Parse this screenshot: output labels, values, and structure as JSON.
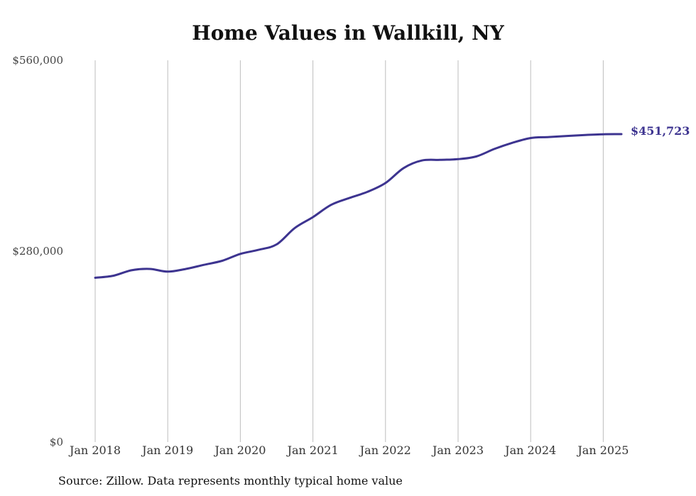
{
  "chart_data": {
    "type": "line",
    "title": "Home Values in Wallkill, NY",
    "xlabel": "",
    "ylabel": "",
    "ylim": [
      0,
      560000
    ],
    "y_ticks": [
      {
        "value": 0,
        "label": "$0"
      },
      {
        "value": 280000,
        "label": "$280,000"
      },
      {
        "value": 560000,
        "label": "$560,000"
      }
    ],
    "x_ticks": [
      {
        "value": 2018,
        "label": "Jan 2018"
      },
      {
        "value": 2019,
        "label": "Jan 2019"
      },
      {
        "value": 2020,
        "label": "Jan 2020"
      },
      {
        "value": 2021,
        "label": "Jan 2021"
      },
      {
        "value": 2022,
        "label": "Jan 2022"
      },
      {
        "value": 2023,
        "label": "Jan 2023"
      },
      {
        "value": 2024,
        "label": "Jan 2024"
      },
      {
        "value": 2025,
        "label": "Jan 2025"
      }
    ],
    "xlim": [
      2018,
      2025.25
    ],
    "grid": {
      "vertical": true,
      "horizontal": false
    },
    "line_color": "#3d3490",
    "series": [
      {
        "x": [
          2018.0,
          2018.25,
          2018.5,
          2018.75,
          2019.0,
          2019.25,
          2019.5,
          2019.75,
          2020.0,
          2020.25,
          2020.5,
          2020.75,
          2021.0,
          2021.25,
          2021.5,
          2021.75,
          2022.0,
          2022.25,
          2022.5,
          2022.75,
          2023.0,
          2023.25,
          2023.5,
          2023.75,
          2024.0,
          2024.25,
          2024.5,
          2024.75,
          2025.0,
          2025.25
        ],
        "y": [
          241000,
          244000,
          252000,
          254000,
          250000,
          254000,
          260000,
          266000,
          276000,
          282000,
          290000,
          314000,
          330000,
          348000,
          358000,
          367000,
          380000,
          402000,
          413000,
          414000,
          415000,
          419000,
          430000,
          439000,
          446000,
          447500,
          449000,
          450500,
          451500,
          451723
        ],
        "end_label": "$451,723"
      }
    ]
  },
  "source_note": "Source: Zillow. Data represents monthly typical home value"
}
